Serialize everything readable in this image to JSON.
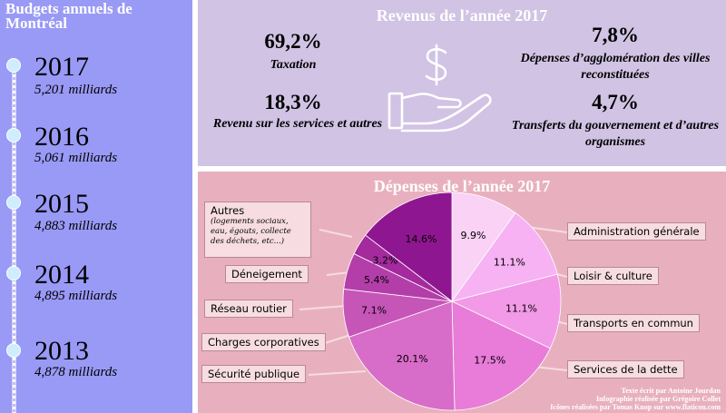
{
  "timeline": {
    "title": "Budgets annuels de Montréal",
    "entries": [
      {
        "year": "2017",
        "amount": "5,201 milliards"
      },
      {
        "year": "2016",
        "amount": "5,061 milliards"
      },
      {
        "year": "2015",
        "amount": "4,883 milliards"
      },
      {
        "year": "2014",
        "amount": "4,895 milliards"
      },
      {
        "year": "2013",
        "amount": "4,878 milliards"
      }
    ]
  },
  "revenue": {
    "title": "Revenus de l’année 2017",
    "icon": "hand-dollar-icon",
    "items": [
      {
        "pct": "69,2%",
        "label": "Taxation"
      },
      {
        "pct": "18,3%",
        "label": "Revenu sur les services et autres"
      },
      {
        "pct": "7,8%",
        "label": "Dépenses d’agglomération des villes reconstituées"
      },
      {
        "pct": "4,7%",
        "label": "Transferts du gouvernement et d’autres organismes"
      }
    ]
  },
  "expenses": {
    "title": "Dépenses de l’année 2017",
    "autres_sub": "(logements sociaux, eau, égouts, collecte des déchets, etc...)",
    "credits": [
      "Texte écrit par Antoine Jourdan",
      "Infographie réalisée par Grégoire Collet",
      "Icônes réalisées par Tomas Knop sur www.flaticon.com"
    ]
  },
  "chart_data": {
    "type": "pie",
    "title": "Dépenses de l’année 2017",
    "slices": [
      {
        "label": "Administration générale",
        "value": 9.9,
        "value_label": "9.9%",
        "color": "#fad2f6"
      },
      {
        "label": "Loisir & culture",
        "value": 11.1,
        "value_label": "11.1%",
        "color": "#f6b2f2"
      },
      {
        "label": "Transports en commun",
        "value": 11.1,
        "value_label": "11.1%",
        "color": "#f29ae8"
      },
      {
        "label": "Services de la dette",
        "value": 17.5,
        "value_label": "17.5%",
        "color": "#e87cd8"
      },
      {
        "label": "Sécurité publique",
        "value": 20.1,
        "value_label": "20.1%",
        "color": "#d86cc9"
      },
      {
        "label": "Charges corporatives",
        "value": 7.1,
        "value_label": "7.1%",
        "color": "#c655b8"
      },
      {
        "label": "Réseau routier",
        "value": 5.4,
        "value_label": "5.4%",
        "color": "#b33ea9"
      },
      {
        "label": "Déneigement",
        "value": 3.2,
        "value_label": "3.2%",
        "color": "#a42a9d"
      },
      {
        "label": "Autres",
        "value": 14.6,
        "value_label": "14.6%",
        "color": "#8f1691"
      }
    ]
  }
}
